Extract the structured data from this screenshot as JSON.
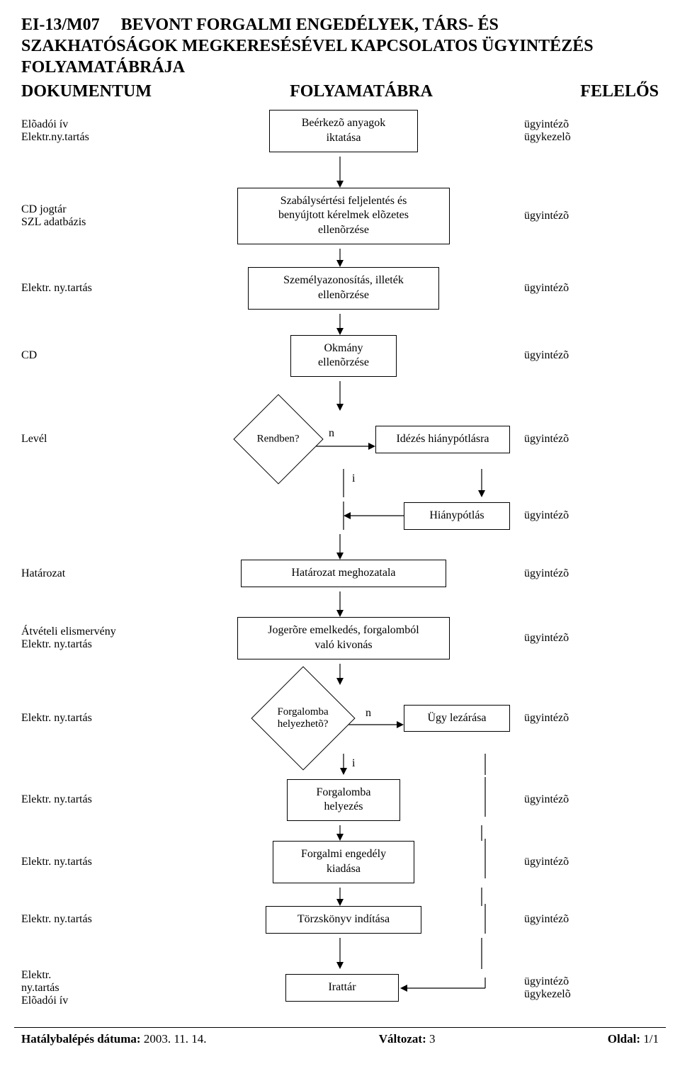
{
  "doc_code": "EI-13/M07",
  "title_lines": [
    "BEVONT FORGALMI ENGEDÉLYEK, TÁRS- ÉS",
    "SZAKHATÓSÁGOK MEGKERESÉSÉVEL KAPCSOLATOS ÜGYINTÉZÉS",
    "FOLYAMATÁBRÁJA"
  ],
  "columns": {
    "left": "DOKUMENTUM",
    "mid": "FOLYAMATÁBRA",
    "right": "FELELŐS"
  },
  "steps": {
    "r1": {
      "left1": "Elõadói ív",
      "left2": "Elektr.ny.tartás",
      "box": "Beérkezõ anyagok\niktatása",
      "right1": "ügyintézõ",
      "right2": "ügykezelõ"
    },
    "r2": {
      "left1": "CD jogtár",
      "left2": "SZL adatbázis",
      "box": "Szabálysértési feljelentés és\nbenyújtott kérelmek elõzetes\nellenõrzése",
      "right1": "ügyintézõ"
    },
    "r3": {
      "left1": "Elektr. ny.tartás",
      "box": "Személyazonosítás, illeték\nellenõrzése",
      "right1": "ügyintézõ"
    },
    "r4": {
      "left1": "CD",
      "box": "Okmány\nellenõrzése",
      "right1": "ügyintézõ"
    },
    "dec1": {
      "left1": "Levél",
      "label": "Rendben?",
      "n": "n",
      "i": "i",
      "side_box": "Idézés hiánypótlásra",
      "right1": "ügyintézõ"
    },
    "dec1b": {
      "side_box": "Hiánypótlás",
      "right1": "ügyintézõ"
    },
    "r5": {
      "left1": "Határozat",
      "box": "Határozat meghozatala",
      "right1": "ügyintézõ"
    },
    "r6": {
      "left1": "Átvételi elismervény",
      "left2": "Elektr. ny.tartás",
      "box": "Jogerõre emelkedés, forgalomból\nvaló kivonás",
      "right1": "ügyintézõ"
    },
    "dec2": {
      "left1": "Elektr. ny.tartás",
      "label": "Forgalomba\nhelyezhetõ?",
      "n": "n",
      "i": "i",
      "side_box": "Ügy lezárása",
      "right1": "ügyintézõ"
    },
    "r7": {
      "left1": "Elektr. ny.tartás",
      "box": "Forgalomba\nhelyezés",
      "right1": "ügyintézõ"
    },
    "r8": {
      "left1": "Elektr. ny.tartás",
      "box": "Forgalmi engedély\nkiadása",
      "right1": "ügyintézõ"
    },
    "r9": {
      "left1": "Elektr. ny.tartás",
      "box": "Törzskönyv indítása",
      "right1": "ügyintézõ"
    },
    "r10": {
      "left1": "Elektr.",
      "left2": "ny.tartás",
      "left3": "Elõadói ív",
      "box": "Irattár",
      "right1": "ügyintézõ",
      "right2": "ügykezelõ"
    }
  },
  "footer": {
    "left_label": "Hatálybalépés dátuma:",
    "left_value": "2003. 11. 14.",
    "mid_label": "Változat:",
    "mid_value": "3",
    "right_label": "Oldal:",
    "right_value": "1/1"
  },
  "style": {
    "box_border": "#000000",
    "bg": "#ffffff",
    "fontsize_title": 24,
    "fontsize_body": 16,
    "arrow_len_short": 24,
    "arrow_len_long": 44
  }
}
